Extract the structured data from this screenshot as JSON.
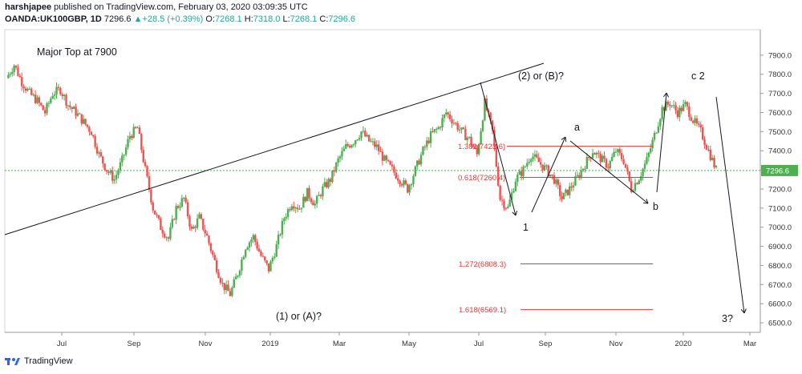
{
  "header": {
    "author": "harshjapee",
    "published": "published on TradingView.com, February 03, 2020 03:09:35 UTC",
    "symbol": "OANDA:UK100GBP, 1D",
    "price": "7296.6",
    "change": "+28.5 (+0.39%)",
    "open_label": "O:",
    "open": "7268.1",
    "high_label": "H:",
    "high": "7318.0",
    "low_label": "L:",
    "low": "7268.1",
    "close_label": "C:",
    "close": "7296.6",
    "change_arrow": "up-arrow-icon"
  },
  "footer": {
    "brand": "TradingView",
    "logo_icon": "tradingview-logo-icon"
  },
  "colors": {
    "up": "#26a69a",
    "down": "#ef5350",
    "up_candle": "#4caf50",
    "fib": "#e53935",
    "price_line": "#4caf50"
  },
  "annotations": {
    "major_top": "Major Top at 7900",
    "wave_2b": "(2) or (B)?",
    "wave_1a": "(1) or (A)?",
    "wave_a": "a",
    "wave_b": "b",
    "wave_c2": "c 2",
    "wave_1": "1",
    "wave_3": "3?"
  },
  "chart_data": {
    "type": "candlestick",
    "title": "",
    "xlabel": "",
    "ylabel": "",
    "ylim": [
      6450,
      8000
    ],
    "y_ticks": [
      "7900.0",
      "7800.0",
      "7700.0",
      "7600.0",
      "7500.0",
      "7400.0",
      "7300.0",
      "7200.0",
      "7100.0",
      "7000.0",
      "6900.0",
      "6800.0",
      "6700.0",
      "6600.0",
      "6500.0"
    ],
    "x_ticks": [
      "Jul",
      "Sep",
      "Nov",
      "2019",
      "Mar",
      "May",
      "Jul",
      "Sep",
      "Nov",
      "2020",
      "Mar"
    ],
    "last_price_label": "7296.6",
    "last_price": 7296.6,
    "fib_levels": [
      {
        "label": "1.382(7423.6)",
        "value": 7423.6
      },
      {
        "label": "0.618(7260.4)",
        "value": 7260.4
      },
      {
        "label": "1.272(6808.3)",
        "value": 6808.3
      },
      {
        "label": "1.618(6569.1)",
        "value": 6569.1
      }
    ],
    "price_path": [
      [
        0,
        7780
      ],
      [
        2,
        7850
      ],
      [
        4,
        7760
      ],
      [
        6,
        7700
      ],
      [
        8,
        7660
      ],
      [
        10,
        7600
      ],
      [
        12,
        7700
      ],
      [
        14,
        7720
      ],
      [
        16,
        7640
      ],
      [
        18,
        7600
      ],
      [
        20,
        7550
      ],
      [
        22,
        7500
      ],
      [
        24,
        7380
      ],
      [
        26,
        7300
      ],
      [
        28,
        7250
      ],
      [
        30,
        7350
      ],
      [
        32,
        7480
      ],
      [
        34,
        7520
      ],
      [
        36,
        7300
      ],
      [
        38,
        7100
      ],
      [
        40,
        7000
      ],
      [
        42,
        6940
      ],
      [
        44,
        7100
      ],
      [
        46,
        7150
      ],
      [
        48,
        6980
      ],
      [
        50,
        7050
      ],
      [
        52,
        6950
      ],
      [
        54,
        6820
      ],
      [
        56,
        6700
      ],
      [
        58,
        6650
      ],
      [
        60,
        6760
      ],
      [
        62,
        6900
      ],
      [
        64,
        6950
      ],
      [
        66,
        6850
      ],
      [
        68,
        6780
      ],
      [
        70,
        6900
      ],
      [
        72,
        7050
      ],
      [
        74,
        7130
      ],
      [
        76,
        7100
      ],
      [
        78,
        7180
      ],
      [
        80,
        7120
      ],
      [
        82,
        7200
      ],
      [
        84,
        7250
      ],
      [
        86,
        7350
      ],
      [
        88,
        7420
      ],
      [
        90,
        7450
      ],
      [
        92,
        7500
      ],
      [
        94,
        7450
      ],
      [
        96,
        7420
      ],
      [
        98,
        7350
      ],
      [
        100,
        7300
      ],
      [
        102,
        7250
      ],
      [
        104,
        7200
      ],
      [
        106,
        7300
      ],
      [
        108,
        7400
      ],
      [
        110,
        7480
      ],
      [
        112,
        7520
      ],
      [
        114,
        7600
      ],
      [
        116,
        7550
      ],
      [
        118,
        7500
      ],
      [
        120,
        7460
      ],
      [
        122,
        7380
      ],
      [
        124,
        7650
      ],
      [
        126,
        7500
      ],
      [
        128,
        7150
      ],
      [
        130,
        7100
      ],
      [
        132,
        7250
      ],
      [
        134,
        7300
      ],
      [
        136,
        7380
      ],
      [
        138,
        7340
      ],
      [
        140,
        7300
      ],
      [
        142,
        7250
      ],
      [
        144,
        7150
      ],
      [
        146,
        7200
      ],
      [
        148,
        7260
      ],
      [
        150,
        7330
      ],
      [
        152,
        7400
      ],
      [
        154,
        7360
      ],
      [
        156,
        7320
      ],
      [
        158,
        7400
      ],
      [
        160,
        7350
      ],
      [
        162,
        7200
      ],
      [
        164,
        7260
      ],
      [
        166,
        7350
      ],
      [
        168,
        7480
      ],
      [
        170,
        7620
      ],
      [
        172,
        7650
      ],
      [
        174,
        7600
      ],
      [
        176,
        7640
      ],
      [
        178,
        7560
      ],
      [
        180,
        7500
      ],
      [
        182,
        7400
      ],
      [
        184,
        7300
      ]
    ]
  }
}
